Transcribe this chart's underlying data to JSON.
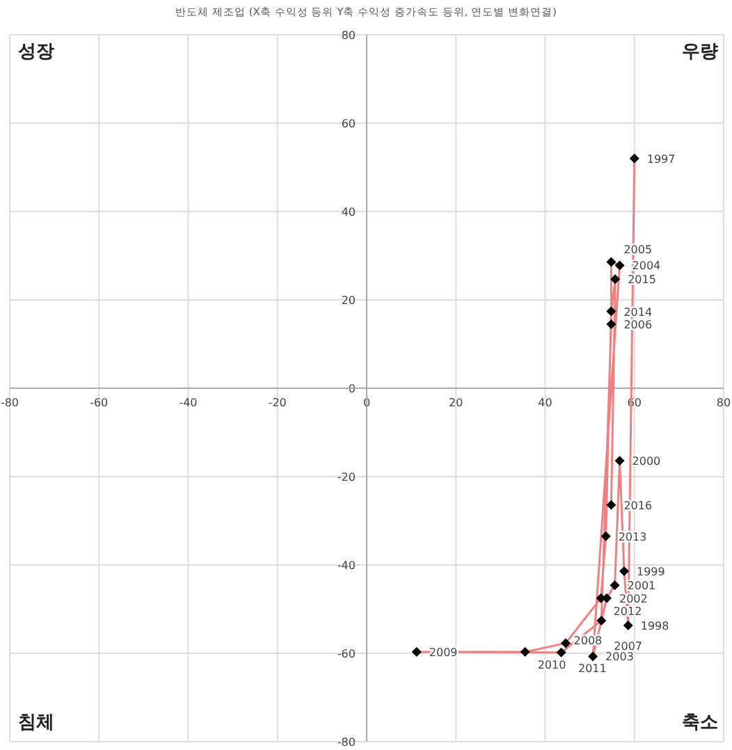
{
  "chart_data": {
    "type": "line",
    "title": "반도체 제조업 (X축 수익성 등위  Y축 수익성 증가속도 등위, 연도별 변화연결)",
    "x": [
      60,
      58.6,
      57.7,
      56.7,
      55.6,
      53.8,
      50.7,
      56.7,
      54.8,
      54.8,
      52.6,
      43.6,
      11.2,
      35.5,
      44.6,
      52.5,
      53.6,
      54.8,
      55.7,
      54.8
    ],
    "values": [
      52,
      -53.7,
      -41.4,
      -16.4,
      -44.6,
      -47.5,
      -60.7,
      27.8,
      28.6,
      14.5,
      -52.6,
      -59.8,
      -59.7,
      -59.7,
      -57.7,
      -47.5,
      -33.5,
      17.4,
      24.7,
      -26.4
    ],
    "color": "#f08080",
    "marker": "diamond",
    "grid": true,
    "xlim": [
      -80,
      80
    ],
    "ylim": [
      -80,
      80
    ],
    "xticks": [
      -80,
      -60,
      -40,
      -20,
      0,
      20,
      40,
      60,
      80
    ],
    "yticks": [
      -80,
      -60,
      -40,
      -20,
      0,
      20,
      40,
      60,
      80
    ],
    "annotations": [
      "성장",
      "우량",
      "침체",
      "축소",
      {
        "text": "1997",
        "x": 60,
        "y": 52
      },
      {
        "text": "1998",
        "x": 58.6,
        "y": -53.7
      },
      {
        "text": "1999",
        "x": 57.7,
        "y": -41.4
      },
      {
        "text": "2000",
        "x": 56.7,
        "y": -16.4
      },
      {
        "text": "2001",
        "x": 55.6,
        "y": -44.6
      },
      {
        "text": "2002",
        "x": 53.8,
        "y": -47.5
      },
      {
        "text": "2003",
        "x": 50.7,
        "y": -60.7
      },
      {
        "text": "2004",
        "x": 56.7,
        "y": 27.8
      },
      {
        "text": "2005",
        "x": 54.8,
        "y": 28.6
      },
      {
        "text": "2006",
        "x": 54.8,
        "y": 14.5
      },
      {
        "text": "2007",
        "x": 52.6,
        "y": -52.6
      },
      {
        "text": "2008",
        "x": 43.6,
        "y": -59.8
      },
      {
        "text": "2009",
        "x": 11.2,
        "y": -59.7
      },
      {
        "text": "2010",
        "x": 35.5,
        "y": -59.7
      },
      {
        "text": "2011",
        "x": 44.6,
        "y": -57.7
      },
      {
        "text": "2012",
        "x": 52.5,
        "y": -47.5
      },
      {
        "text": "2013",
        "x": 53.6,
        "y": -33.5
      },
      {
        "text": "2014",
        "x": 54.8,
        "y": 17.4
      },
      {
        "text": "2015",
        "x": 55.7,
        "y": 24.7
      },
      {
        "text": "2016",
        "x": 54.8,
        "y": -26.4
      }
    ]
  }
}
